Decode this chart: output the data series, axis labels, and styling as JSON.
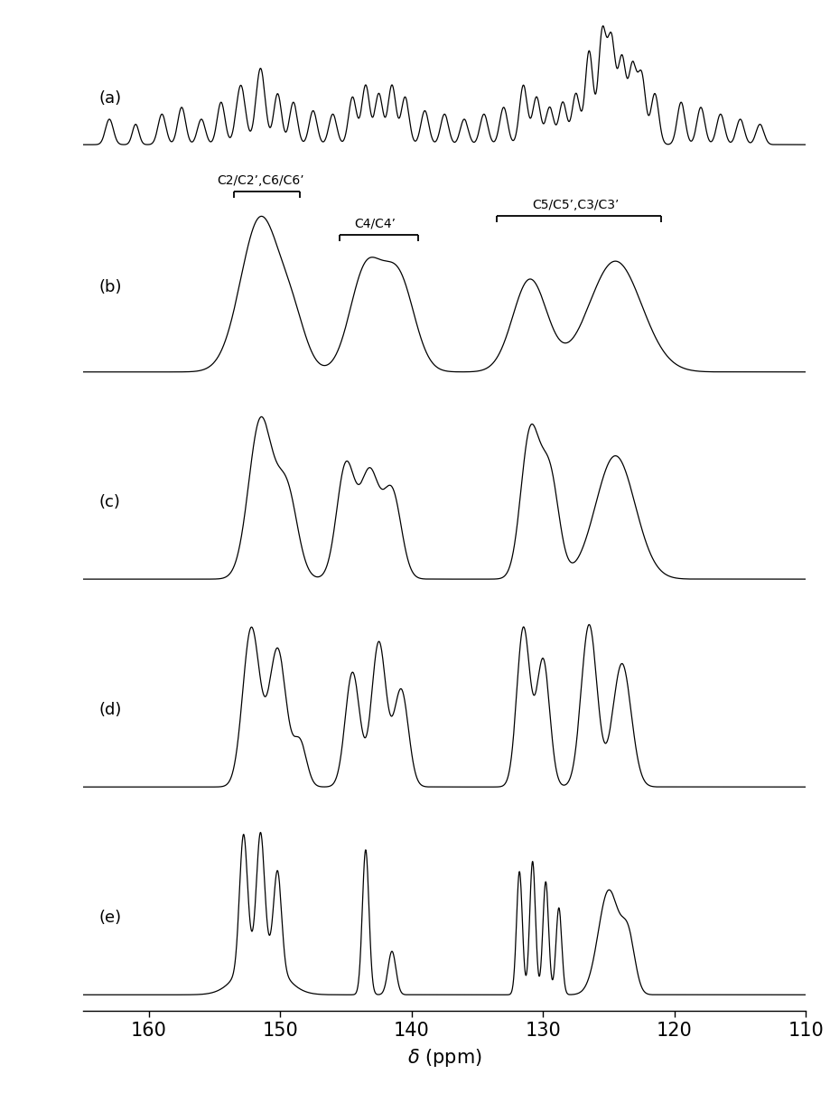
{
  "x_min": 110,
  "x_max": 165,
  "xlabel": "$\\delta$ (ppm)",
  "xticks": [
    110,
    120,
    130,
    140,
    150,
    160
  ],
  "panel_labels": [
    "(a)",
    "(b)",
    "(c)",
    "(d)",
    "(e)"
  ],
  "figsize": [
    9.2,
    12.1
  ],
  "dpi": 100
}
